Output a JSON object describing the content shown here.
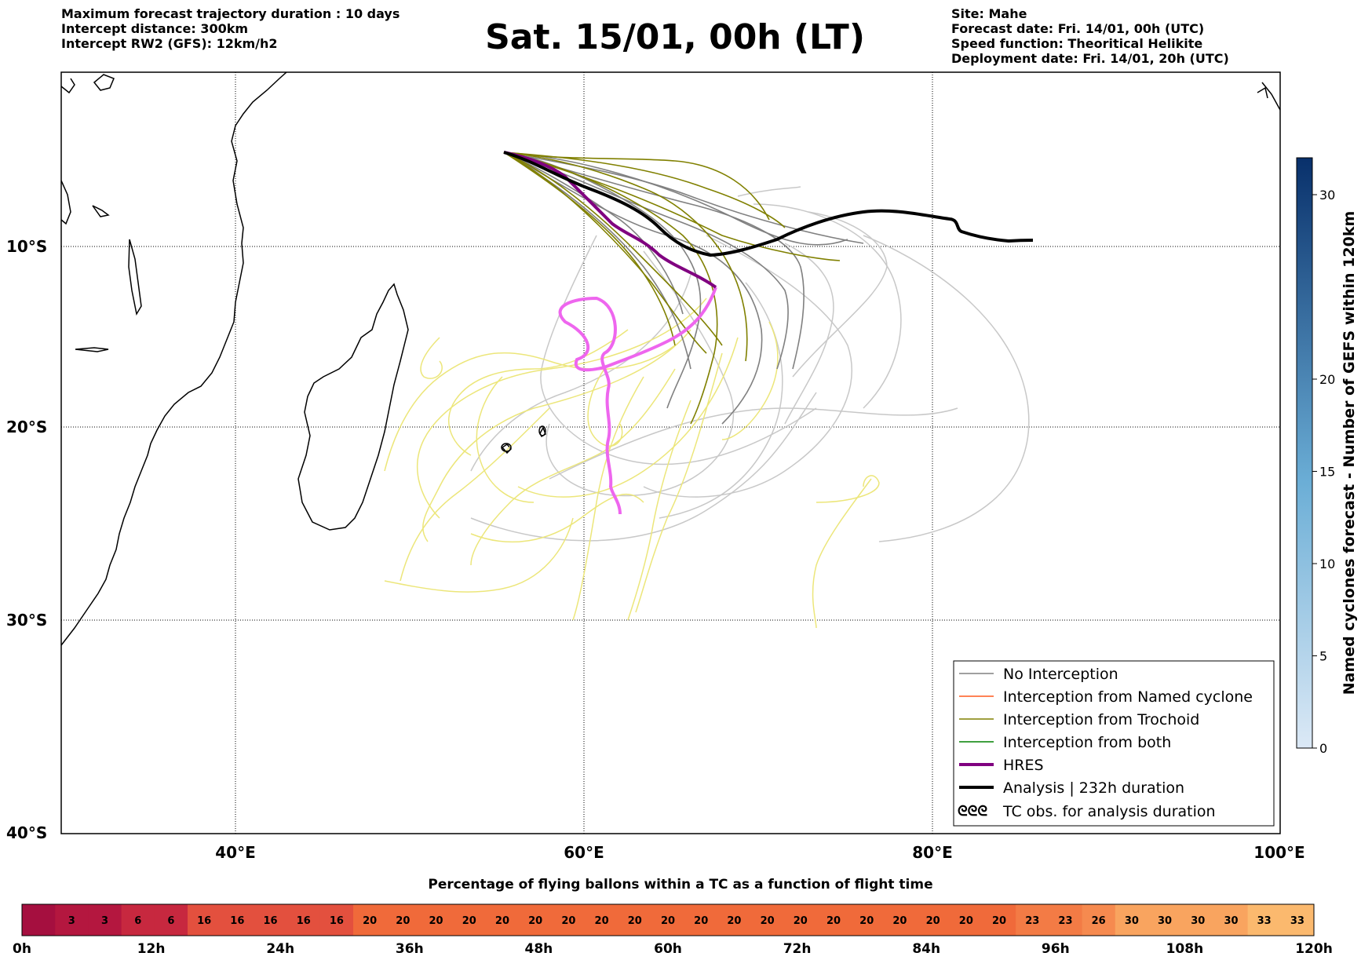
{
  "header_left": [
    "Maximum forecast trajectory duration : 10 days",
    "Intercept distance: 300km",
    "Intercept RW2 (GFS):  12km/h2"
  ],
  "title": "Sat. 15/01, 00h (LT)",
  "header_right": [
    "Site: Mahe",
    "Forecast date: Fri. 14/01, 00h (UTC)",
    "Speed function: Theoritical Helikite",
    "Deployment date: Fri. 14/01, 20h (UTC)"
  ],
  "map": {
    "lon_range": [
      30,
      100
    ],
    "lat_range": [
      -40,
      -2
    ],
    "lat_labels": [
      "10°S",
      "20°S",
      "30°S",
      "40°S"
    ],
    "lon_labels": [
      "40°E",
      "60°E",
      "80°E",
      "100°E"
    ],
    "grid": true
  },
  "legend": {
    "placement": "bottom-right",
    "items": [
      {
        "label": "No Interception",
        "color": "#808080",
        "style": "thin"
      },
      {
        "label": "Interception from Named cyclone",
        "color": "#ff5a1e",
        "style": "thin"
      },
      {
        "label": "Interception from Trochoid",
        "color": "#808000",
        "style": "thin"
      },
      {
        "label": "Interception from both",
        "color": "#008000",
        "style": "thin"
      },
      {
        "label": "HRES",
        "color": "#800080",
        "style": "thick"
      },
      {
        "label": "Analysis | 232h duration",
        "color": "#000000",
        "style": "thick"
      },
      {
        "label": "TC obs. for analysis duration",
        "color": "#000000",
        "style": "symbol",
        "symbol": "ᘓᘓᘓ"
      }
    ]
  },
  "right_colorbar": {
    "label": "Named cyclones forecast - Number of GEFS within 120km",
    "ticks": [
      "0",
      "5",
      "10",
      "15",
      "20",
      "30"
    ],
    "range": [
      0,
      32
    ],
    "color_low": "#dce9f6",
    "color_high": "#08306b"
  },
  "bottom_colorbar": {
    "title": "Percentage of flying ballons within a TC as a function of flight time",
    "cell_values": [
      "",
      "3",
      "3",
      "6",
      "6",
      "16",
      "16",
      "16",
      "16",
      "16",
      "20",
      "20",
      "20",
      "20",
      "20",
      "20",
      "20",
      "20",
      "20",
      "20",
      "20",
      "20",
      "20",
      "20",
      "20",
      "20",
      "20",
      "20",
      "20",
      "20",
      "23",
      "23",
      "26",
      "30",
      "30",
      "30",
      "30",
      "33",
      "33"
    ],
    "time_labels": [
      "0h",
      "12h",
      "24h",
      "36h",
      "48h",
      "60h",
      "72h",
      "84h",
      "96h",
      "108h",
      "120h"
    ]
  },
  "tracks": {
    "analysis_color": "#000000",
    "hres_color": "#800080",
    "hres_intercept_color": "#ee66ee",
    "no_intercept_color": "#808080",
    "trochoid_color": "#808000",
    "ensemble_after_color": "#c8c8c8",
    "trochoid_after_color": "#ece67a"
  },
  "chart_data": {
    "type": "map",
    "analysis_track": [
      [
        55.5,
        -5.4
      ],
      [
        57.5,
        -6.2
      ],
      [
        60,
        -7.2
      ],
      [
        62,
        -8.0
      ],
      [
        64,
        -9.3
      ],
      [
        66,
        -10.3
      ],
      [
        68,
        -10.0
      ],
      [
        70,
        -9.6
      ],
      [
        72,
        -9.0
      ],
      [
        74,
        -8.3
      ],
      [
        77,
        -7.9
      ],
      [
        80,
        -8.4
      ],
      [
        81.5,
        -8.3
      ],
      [
        82.5,
        -9.0
      ],
      [
        84,
        -9.6
      ],
      [
        85.8,
        -9.5
      ]
    ],
    "hres_track": [
      [
        55.5,
        -5.4
      ],
      [
        57.7,
        -5.9
      ],
      [
        59.5,
        -7.0
      ],
      [
        61,
        -8.2
      ],
      [
        63,
        -9.4
      ],
      [
        65,
        -10.8
      ],
      [
        67,
        -11.8
      ],
      [
        67.5,
        -12.4
      ]
    ],
    "tc_obs": [
      [
        58.3,
        -20.5
      ],
      [
        57.0,
        -20.6
      ]
    ]
  }
}
